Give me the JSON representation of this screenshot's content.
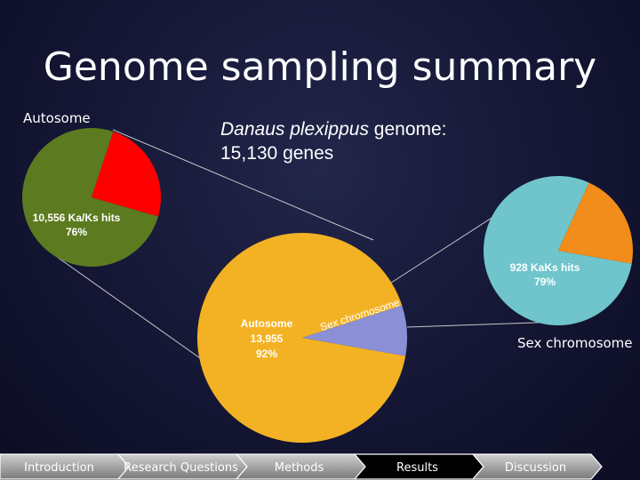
{
  "slide": {
    "title": "Genome sampling summary",
    "subtitle_species": "Danaus plexippus",
    "subtitle_rest": " genome:",
    "subtitle_line2": "15,130 genes",
    "autosome_label": "Autosome",
    "sex_label": "Sex chromosome"
  },
  "chart_data": [
    {
      "type": "pie",
      "name": "main",
      "slices": [
        {
          "label": "Autosome",
          "value": 13955,
          "percent": 92,
          "color": "#f3b223",
          "data_label": [
            "Autosome",
            "13,955",
            "92%"
          ]
        },
        {
          "label": "Sex chromosome",
          "value": 1175,
          "percent": 8,
          "color": "#8b8fd6",
          "data_label": [
            "Sex chromosome"
          ]
        }
      ]
    },
    {
      "type": "pie",
      "name": "autosome",
      "slices": [
        {
          "label": "Ka/Ks hits",
          "value": 10556,
          "percent": 76,
          "color": "#5c7a1f",
          "data_label": [
            "10,556 Ka/Ks hits",
            "76%"
          ]
        },
        {
          "label": "other",
          "value": 3399,
          "percent": 24,
          "color": "#ff0000",
          "data_label": []
        }
      ]
    },
    {
      "type": "pie",
      "name": "sex",
      "slices": [
        {
          "label": "KaKs hits",
          "value": 928,
          "percent": 79,
          "color": "#6fc5cb",
          "data_label": [
            "928 KaKs hits",
            "79%"
          ]
        },
        {
          "label": "other",
          "value": 247,
          "percent": 21,
          "color": "#f28c1a",
          "data_label": []
        }
      ]
    }
  ],
  "nav": {
    "items": [
      "Introduction",
      "Research Questions",
      "Methods",
      "Results",
      "Discussion"
    ],
    "active": "Results"
  }
}
